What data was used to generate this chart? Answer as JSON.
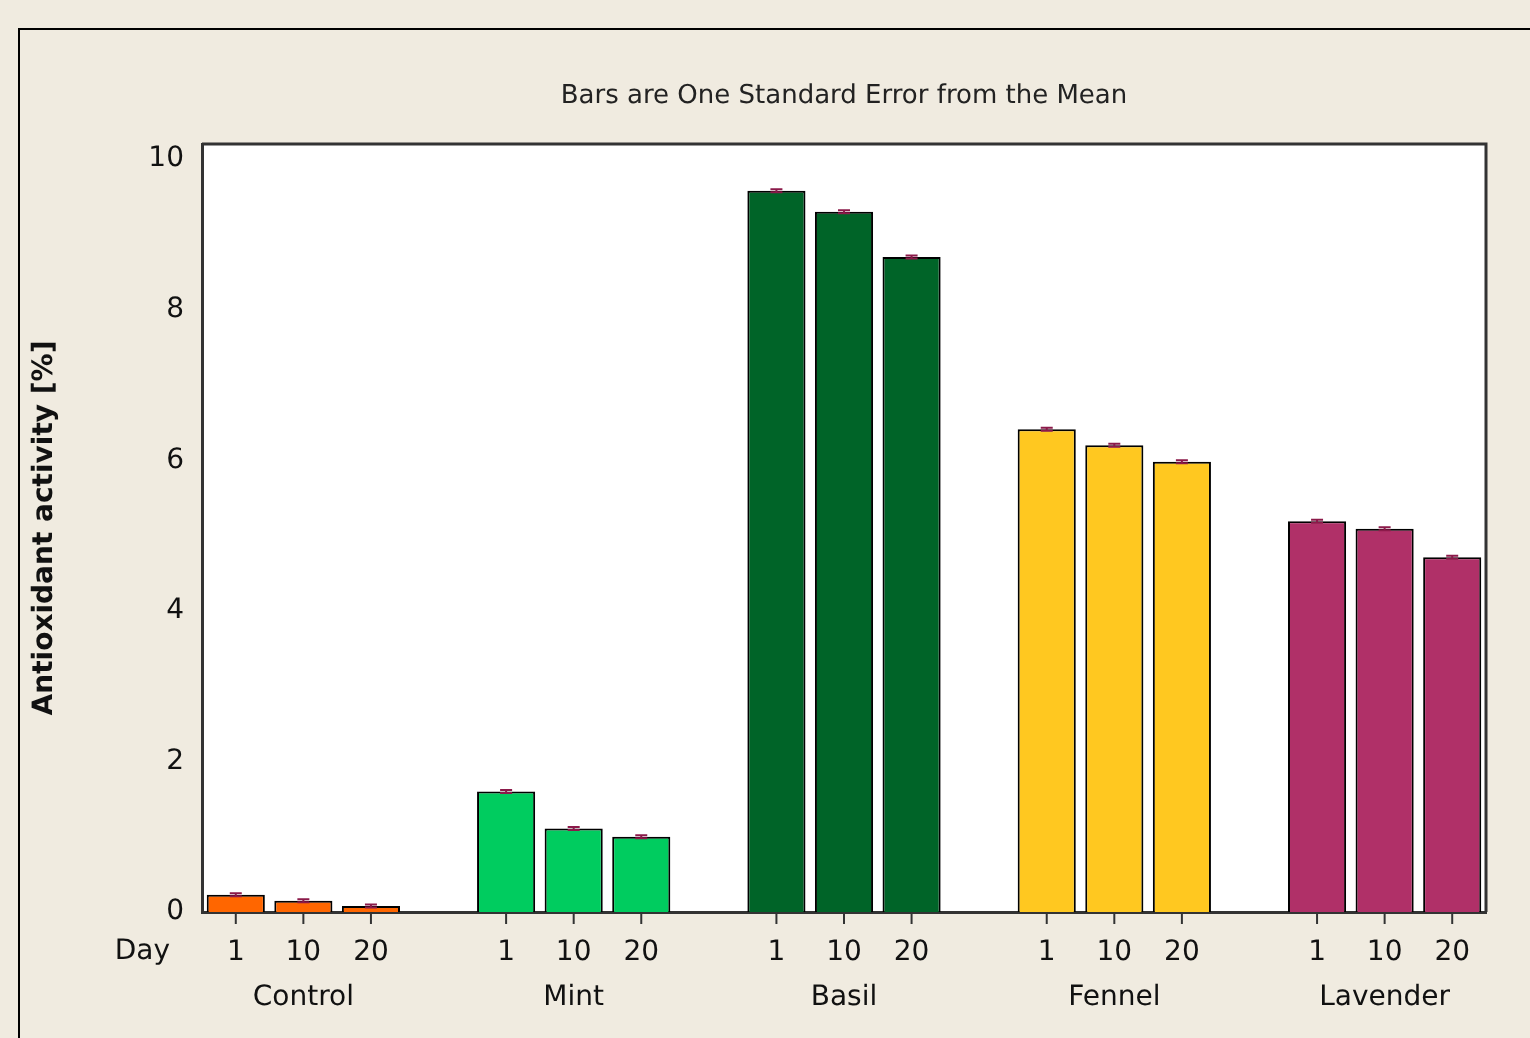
{
  "chart_data": {
    "type": "bar",
    "title": "Bars are One Standard Error from the Mean",
    "ylabel": "Antioxidant activity [%]",
    "xlabel": "Day",
    "categories": [
      "1",
      "10",
      "20",
      null,
      "1",
      "10",
      "20",
      null,
      "1",
      "10",
      "20",
      null,
      "1",
      "10",
      "20",
      null,
      "1",
      "10",
      "20"
    ],
    "values": [
      0.23,
      0.15,
      0.08,
      null,
      1.6,
      1.11,
      1.0,
      null,
      9.58,
      9.3,
      8.7,
      null,
      6.41,
      6.2,
      5.98,
      null,
      5.19,
      5.09,
      4.71
    ],
    "colors": [
      "#ff6600",
      "#ff6600",
      "#ff6600",
      null,
      "#00cc5f",
      "#00cc5f",
      "#00cc5f",
      null,
      "#006428",
      "#006428",
      "#006428",
      null,
      "#ffc820",
      "#ffc820",
      "#ffc820",
      null,
      "#b03068",
      "#b03068",
      "#b03068"
    ],
    "errors": [
      0.02,
      0.02,
      0.02,
      null,
      0.02,
      0.02,
      0.02,
      null,
      0.02,
      0.02,
      0.02,
      null,
      0.02,
      0.02,
      0.02,
      null,
      0.02,
      0.02,
      0.02
    ],
    "annotations": [
      "Control",
      "Mint",
      "Basil",
      "Fennel",
      "Lavender"
    ],
    "ylim": [
      0,
      10.2
    ],
    "yticks": [
      0,
      2,
      4,
      6,
      8,
      10
    ]
  }
}
